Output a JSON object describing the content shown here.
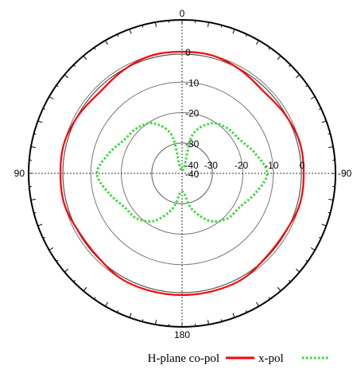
{
  "chart_data": {
    "type": "polar-line",
    "angle_labels": {
      "top": "0",
      "left": "90",
      "right": "-90",
      "bottom": "180"
    },
    "radial_ticks": [
      "0",
      "-10",
      "-20",
      "-30",
      "-40"
    ],
    "radial_tick_values": [
      0,
      -10,
      -20,
      -30,
      -40
    ],
    "horizontal_ticks": [
      "-40",
      "-30",
      "-20",
      "-10",
      "0"
    ],
    "rlim": [
      -40,
      0
    ],
    "grid": true,
    "series": [
      {
        "name": "H-plane co-pol",
        "color": "#ff0000",
        "style": "solid",
        "angles_deg": [
          0,
          15,
          30,
          45,
          60,
          75,
          90,
          105,
          120,
          135,
          150,
          165,
          180,
          195,
          210,
          225,
          240,
          255,
          270,
          285,
          300,
          315,
          330,
          345
        ],
        "values_db": [
          0,
          0,
          -1,
          -2,
          -1,
          0,
          0,
          0,
          -1,
          -1,
          0,
          0,
          0,
          0,
          0,
          -1,
          -1,
          0,
          0,
          0,
          -1,
          -2,
          -1,
          0
        ]
      },
      {
        "name": "x-pol",
        "color": "#33dd33",
        "style": "dotted",
        "angles_deg": [
          0,
          15,
          30,
          45,
          60,
          75,
          90,
          105,
          120,
          135,
          150,
          165,
          180,
          195,
          210,
          225,
          240,
          255,
          270,
          285,
          300,
          315,
          330,
          345
        ],
        "values_db": [
          -39,
          -27,
          -21,
          -19,
          -18,
          -15,
          -12,
          -15,
          -18,
          -19,
          -22,
          -28,
          -34,
          -28,
          -22,
          -19,
          -18,
          -15,
          -12,
          -15,
          -18,
          -19,
          -21,
          -27
        ]
      }
    ],
    "reference_circle": {
      "color": "#555555",
      "value_db": 0
    },
    "legend": {
      "position": "bottom"
    }
  }
}
